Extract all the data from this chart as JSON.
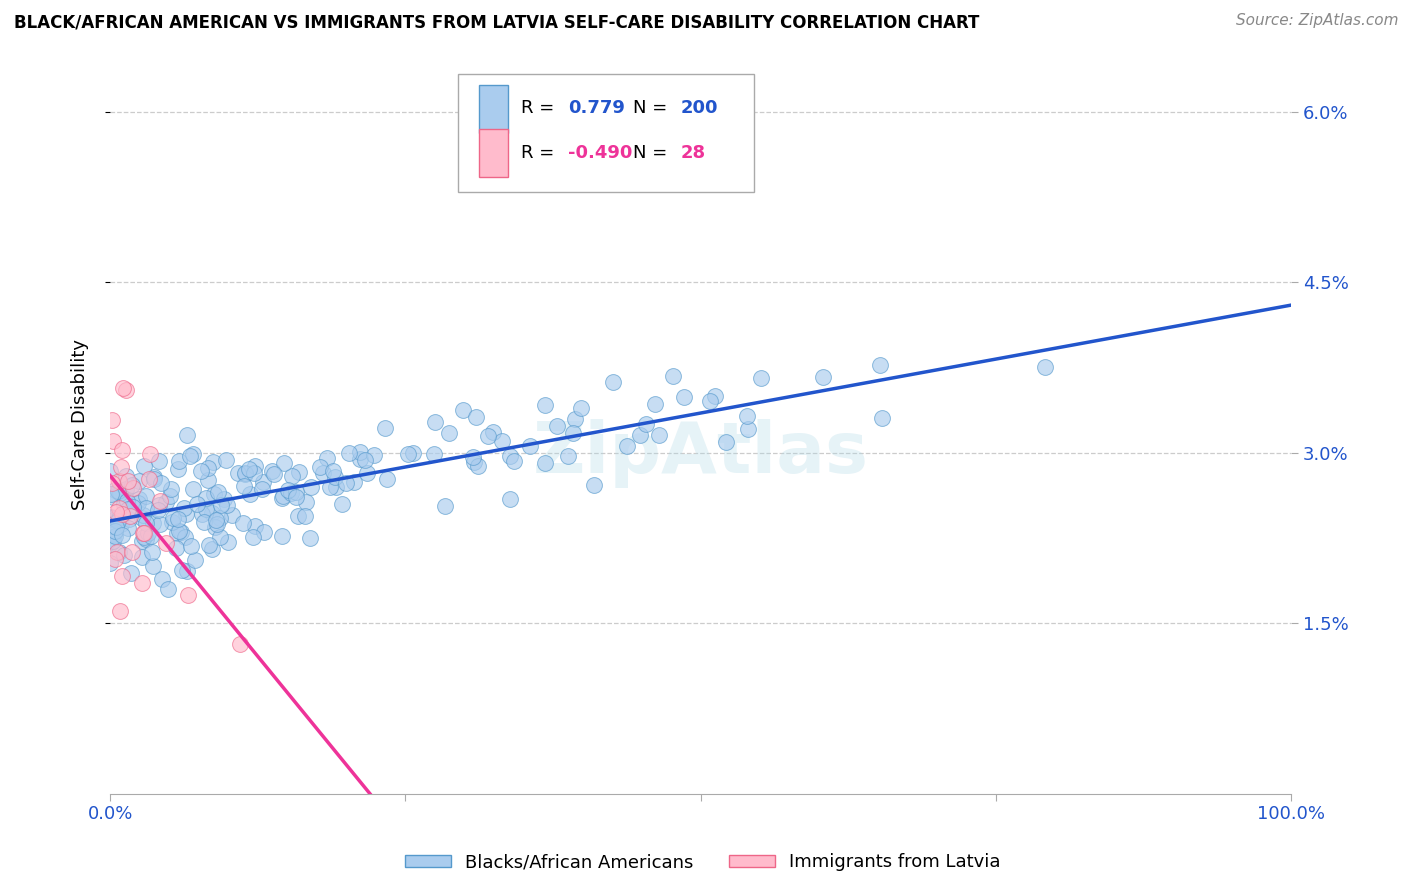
{
  "title": "BLACK/AFRICAN AMERICAN VS IMMIGRANTS FROM LATVIA SELF-CARE DISABILITY CORRELATION CHART",
  "source": "Source: ZipAtlas.com",
  "ylabel": "Self-Care Disability",
  "x_min": 0.0,
  "x_max": 1.0,
  "y_min": 0.0,
  "y_max": 0.065,
  "y_ticks": [
    0.015,
    0.03,
    0.045,
    0.06
  ],
  "y_tick_labels": [
    "1.5%",
    "3.0%",
    "4.5%",
    "6.0%"
  ],
  "x_ticks": [
    0.0,
    0.25,
    0.5,
    0.75,
    1.0
  ],
  "x_tick_labels": [
    "0.0%",
    "",
    "",
    "",
    "100.0%"
  ],
  "blue_line_color": "#2255cc",
  "pink_line_color": "#ee3399",
  "blue_scatter_face": "#aaccee",
  "blue_scatter_edge": "#5599cc",
  "pink_scatter_face": "#ffbbcc",
  "pink_scatter_edge": "#ee6688",
  "watermark": "ZipAtlas",
  "legend_label_blue": "Blacks/African Americans",
  "legend_label_pink": "Immigrants from Latvia",
  "blue_R": 0.779,
  "blue_N": 200,
  "pink_R": -0.49,
  "pink_N": 28,
  "blue_line_x0": 0.0,
  "blue_line_y0": 0.024,
  "blue_line_x1": 1.0,
  "blue_line_y1": 0.043,
  "pink_line_x0": 0.0,
  "pink_line_y0": 0.028,
  "pink_line_x1": 0.22,
  "pink_line_y1": 0.0,
  "background_color": "#ffffff",
  "grid_color": "#cccccc",
  "title_fontsize": 12,
  "source_fontsize": 11,
  "tick_fontsize": 13,
  "ylabel_fontsize": 13
}
